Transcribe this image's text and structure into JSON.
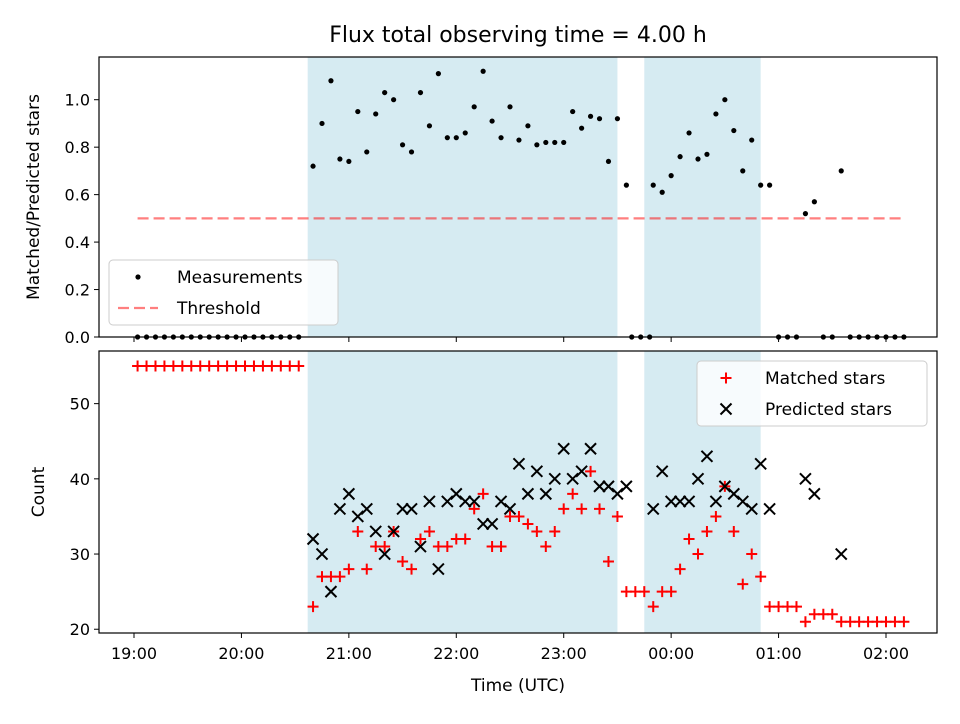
{
  "title": "Flux total observing time = 4.00 h",
  "colors": {
    "shade": "#add8e6",
    "measurement": "#000000",
    "threshold": "#ff0000",
    "matched": "#ff0000",
    "predicted": "#000000"
  },
  "chart_data": [
    {
      "type": "scatter",
      "ylabel": "Matched/Predicted stars",
      "ylim": [
        0,
        1.18
      ],
      "yticks": [
        "0.0",
        "0.2",
        "0.4",
        "0.6",
        "0.8",
        "1.0"
      ],
      "shaded_intervals": [
        [
          "20:37",
          "23:30"
        ],
        [
          "23:45",
          "00:50"
        ]
      ],
      "legend": {
        "position": "lower-left",
        "entries": [
          "Measurements",
          "Threshold"
        ]
      },
      "series": [
        {
          "name": "Measurements",
          "marker": "dot",
          "points": [
            [
              "19:02",
              0
            ],
            [
              "19:07",
              0
            ],
            [
              "19:12",
              0
            ],
            [
              "19:17",
              0
            ],
            [
              "19:22",
              0
            ],
            [
              "19:27",
              0
            ],
            [
              "19:32",
              0
            ],
            [
              "19:37",
              0
            ],
            [
              "19:42",
              0
            ],
            [
              "19:47",
              0
            ],
            [
              "19:52",
              0
            ],
            [
              "19:57",
              0
            ],
            [
              "20:02",
              0
            ],
            [
              "20:07",
              0
            ],
            [
              "20:12",
              0
            ],
            [
              "20:17",
              0
            ],
            [
              "20:22",
              0
            ],
            [
              "20:27",
              0
            ],
            [
              "20:32",
              0
            ],
            [
              "20:40",
              0.72
            ],
            [
              "20:45",
              0.9
            ],
            [
              "20:50",
              1.08
            ],
            [
              "20:55",
              0.75
            ],
            [
              "21:00",
              0.74
            ],
            [
              "21:05",
              0.95
            ],
            [
              "21:10",
              0.78
            ],
            [
              "21:15",
              0.94
            ],
            [
              "21:20",
              1.03
            ],
            [
              "21:25",
              1.0
            ],
            [
              "21:30",
              0.81
            ],
            [
              "21:35",
              0.78
            ],
            [
              "21:40",
              1.03
            ],
            [
              "21:45",
              0.89
            ],
            [
              "21:50",
              1.11
            ],
            [
              "21:55",
              0.84
            ],
            [
              "22:00",
              0.84
            ],
            [
              "22:05",
              0.86
            ],
            [
              "22:10",
              0.97
            ],
            [
              "22:15",
              1.12
            ],
            [
              "22:20",
              0.91
            ],
            [
              "22:25",
              0.84
            ],
            [
              "22:30",
              0.97
            ],
            [
              "22:35",
              0.83
            ],
            [
              "22:40",
              0.89
            ],
            [
              "22:45",
              0.81
            ],
            [
              "22:50",
              0.82
            ],
            [
              "22:55",
              0.82
            ],
            [
              "23:00",
              0.82
            ],
            [
              "23:05",
              0.95
            ],
            [
              "23:10",
              0.88
            ],
            [
              "23:15",
              0.93
            ],
            [
              "23:20",
              0.92
            ],
            [
              "23:25",
              0.74
            ],
            [
              "23:30",
              0.92
            ],
            [
              "23:35",
              0.64
            ],
            [
              "23:38",
              0
            ],
            [
              "23:43",
              0
            ],
            [
              "23:48",
              0
            ],
            [
              "23:50",
              0.64
            ],
            [
              "23:55",
              0.61
            ],
            [
              "00:00",
              0.68
            ],
            [
              "00:05",
              0.76
            ],
            [
              "00:10",
              0.86
            ],
            [
              "00:15",
              0.75
            ],
            [
              "00:20",
              0.77
            ],
            [
              "00:25",
              0.94
            ],
            [
              "00:30",
              1.0
            ],
            [
              "00:35",
              0.87
            ],
            [
              "00:40",
              0.7
            ],
            [
              "00:45",
              0.83
            ],
            [
              "00:50",
              0.64
            ],
            [
              "00:55",
              0.64
            ],
            [
              "01:00",
              0
            ],
            [
              "01:05",
              0
            ],
            [
              "01:10",
              0
            ],
            [
              "01:15",
              0.52
            ],
            [
              "01:20",
              0.57
            ],
            [
              "01:25",
              0
            ],
            [
              "01:30",
              0
            ],
            [
              "01:35",
              0.7
            ],
            [
              "01:40",
              0
            ],
            [
              "01:45",
              0
            ],
            [
              "01:50",
              0
            ],
            [
              "01:55",
              0
            ],
            [
              "02:00",
              0
            ],
            [
              "02:05",
              0
            ],
            [
              "02:10",
              0
            ]
          ]
        },
        {
          "name": "Threshold",
          "marker": "dashed-line",
          "points": [
            [
              "19:02",
              0.5
            ],
            [
              "02:10",
              0.5
            ]
          ]
        }
      ]
    },
    {
      "type": "scatter",
      "xlabel": "Time (UTC)",
      "ylabel": "Count",
      "ylim": [
        19.5,
        57
      ],
      "yticks": [
        "20",
        "30",
        "40",
        "50"
      ],
      "xticks": [
        "19:00",
        "20:00",
        "21:00",
        "22:00",
        "23:00",
        "00:00",
        "01:00",
        "02:00"
      ],
      "shaded_intervals": [
        [
          "20:37",
          "23:30"
        ],
        [
          "23:45",
          "00:50"
        ]
      ],
      "legend": {
        "position": "top-right",
        "entries": [
          "Matched stars",
          "Predicted stars"
        ]
      },
      "series": [
        {
          "name": "Matched stars",
          "marker": "plus",
          "points": [
            [
              "19:02",
              55
            ],
            [
              "19:07",
              55
            ],
            [
              "19:12",
              55
            ],
            [
              "19:17",
              55
            ],
            [
              "19:22",
              55
            ],
            [
              "19:27",
              55
            ],
            [
              "19:32",
              55
            ],
            [
              "19:37",
              55
            ],
            [
              "19:42",
              55
            ],
            [
              "19:47",
              55
            ],
            [
              "19:52",
              55
            ],
            [
              "19:57",
              55
            ],
            [
              "20:02",
              55
            ],
            [
              "20:07",
              55
            ],
            [
              "20:12",
              55
            ],
            [
              "20:17",
              55
            ],
            [
              "20:22",
              55
            ],
            [
              "20:27",
              55
            ],
            [
              "20:32",
              55
            ],
            [
              "20:40",
              23
            ],
            [
              "20:45",
              27
            ],
            [
              "20:50",
              27
            ],
            [
              "20:55",
              27
            ],
            [
              "21:00",
              28
            ],
            [
              "21:05",
              33
            ],
            [
              "21:10",
              28
            ],
            [
              "21:15",
              31
            ],
            [
              "21:20",
              31
            ],
            [
              "21:25",
              33
            ],
            [
              "21:30",
              29
            ],
            [
              "21:35",
              28
            ],
            [
              "21:40",
              32
            ],
            [
              "21:45",
              33
            ],
            [
              "21:50",
              31
            ],
            [
              "21:55",
              31
            ],
            [
              "22:00",
              32
            ],
            [
              "22:05",
              32
            ],
            [
              "22:10",
              36
            ],
            [
              "22:15",
              38
            ],
            [
              "22:20",
              31
            ],
            [
              "22:25",
              31
            ],
            [
              "22:30",
              35
            ],
            [
              "22:35",
              35
            ],
            [
              "22:40",
              34
            ],
            [
              "22:45",
              33
            ],
            [
              "22:50",
              31
            ],
            [
              "22:55",
              33
            ],
            [
              "23:00",
              36
            ],
            [
              "23:05",
              38
            ],
            [
              "23:10",
              36
            ],
            [
              "23:15",
              41
            ],
            [
              "23:20",
              36
            ],
            [
              "23:25",
              29
            ],
            [
              "23:30",
              35
            ],
            [
              "23:35",
              25
            ],
            [
              "23:40",
              25
            ],
            [
              "23:45",
              25
            ],
            [
              "23:50",
              23
            ],
            [
              "23:55",
              25
            ],
            [
              "00:00",
              25
            ],
            [
              "00:05",
              28
            ],
            [
              "00:10",
              32
            ],
            [
              "00:15",
              30
            ],
            [
              "00:20",
              33
            ],
            [
              "00:25",
              35
            ],
            [
              "00:30",
              39
            ],
            [
              "00:35",
              33
            ],
            [
              "00:40",
              26
            ],
            [
              "00:45",
              30
            ],
            [
              "00:50",
              27
            ],
            [
              "00:55",
              23
            ],
            [
              "01:00",
              23
            ],
            [
              "01:05",
              23
            ],
            [
              "01:10",
              23
            ],
            [
              "01:15",
              21
            ],
            [
              "01:20",
              22
            ],
            [
              "01:25",
              22
            ],
            [
              "01:30",
              22
            ],
            [
              "01:35",
              21
            ],
            [
              "01:40",
              21
            ],
            [
              "01:45",
              21
            ],
            [
              "01:50",
              21
            ],
            [
              "01:55",
              21
            ],
            [
              "02:00",
              21
            ],
            [
              "02:05",
              21
            ],
            [
              "02:10",
              21
            ]
          ]
        },
        {
          "name": "Predicted stars",
          "marker": "x",
          "points": [
            [
              "20:40",
              32
            ],
            [
              "20:45",
              30
            ],
            [
              "20:50",
              25
            ],
            [
              "20:55",
              36
            ],
            [
              "21:00",
              38
            ],
            [
              "21:05",
              35
            ],
            [
              "21:10",
              36
            ],
            [
              "21:15",
              33
            ],
            [
              "21:20",
              30
            ],
            [
              "21:25",
              33
            ],
            [
              "21:30",
              36
            ],
            [
              "21:35",
              36
            ],
            [
              "21:40",
              31
            ],
            [
              "21:45",
              37
            ],
            [
              "21:50",
              28
            ],
            [
              "21:55",
              37
            ],
            [
              "22:00",
              38
            ],
            [
              "22:05",
              37
            ],
            [
              "22:10",
              37
            ],
            [
              "22:15",
              34
            ],
            [
              "22:20",
              34
            ],
            [
              "22:25",
              37
            ],
            [
              "22:30",
              36
            ],
            [
              "22:35",
              42
            ],
            [
              "22:40",
              38
            ],
            [
              "22:45",
              41
            ],
            [
              "22:50",
              38
            ],
            [
              "22:55",
              40
            ],
            [
              "23:00",
              44
            ],
            [
              "23:05",
              40
            ],
            [
              "23:10",
              41
            ],
            [
              "23:15",
              44
            ],
            [
              "23:20",
              39
            ],
            [
              "23:25",
              39
            ],
            [
              "23:30",
              38
            ],
            [
              "23:35",
              39
            ],
            [
              "23:50",
              36
            ],
            [
              "23:55",
              41
            ],
            [
              "00:00",
              37
            ],
            [
              "00:05",
              37
            ],
            [
              "00:10",
              37
            ],
            [
              "00:15",
              40
            ],
            [
              "00:20",
              43
            ],
            [
              "00:25",
              37
            ],
            [
              "00:30",
              39
            ],
            [
              "00:35",
              38
            ],
            [
              "00:40",
              37
            ],
            [
              "00:45",
              36
            ],
            [
              "00:50",
              42
            ],
            [
              "00:55",
              36
            ],
            [
              "01:15",
              40
            ],
            [
              "01:20",
              38
            ],
            [
              "01:35",
              30
            ]
          ]
        }
      ]
    }
  ]
}
